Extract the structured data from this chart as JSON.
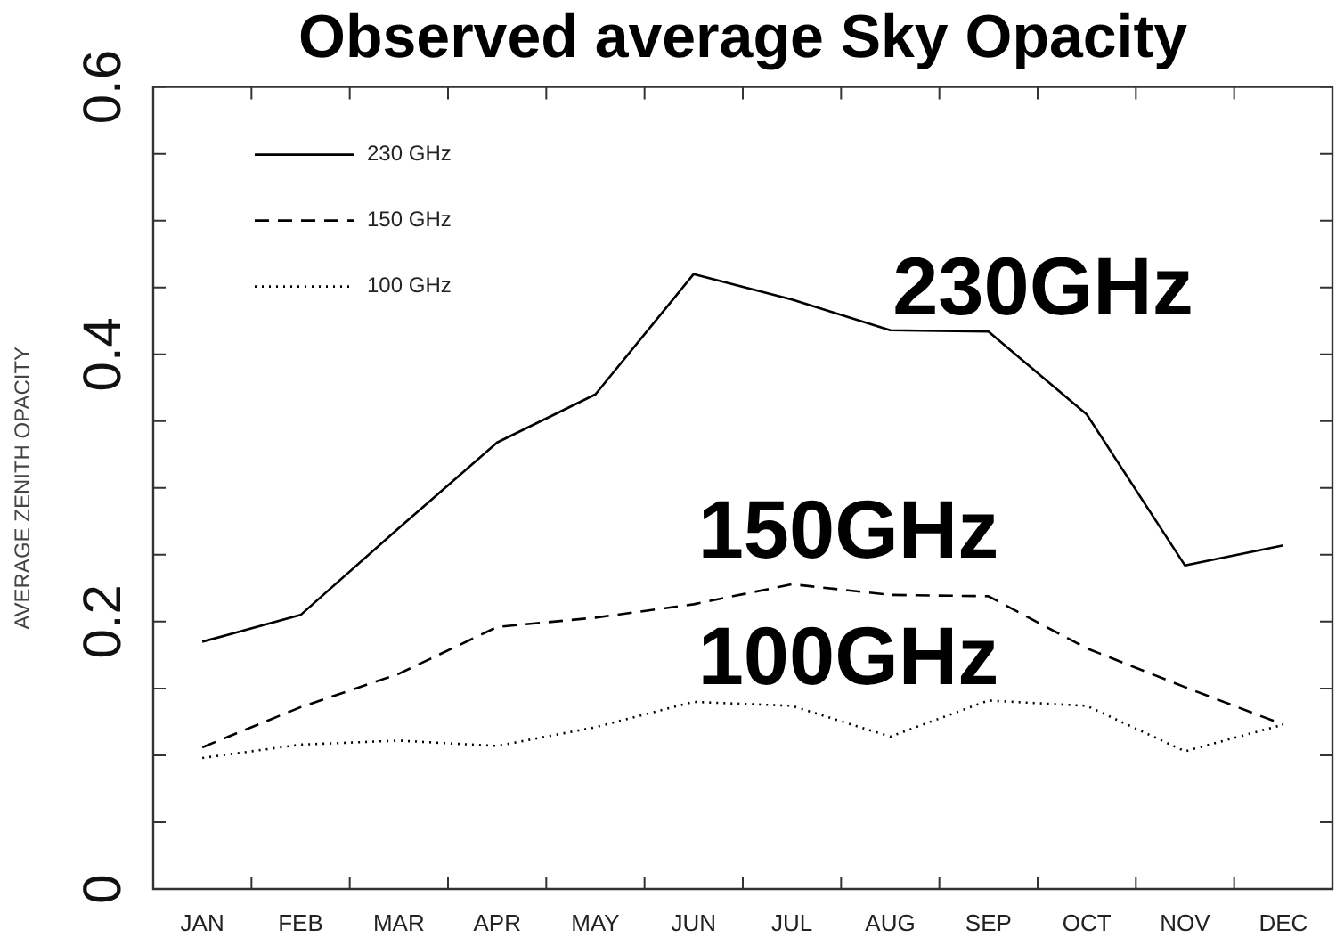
{
  "chart_data": {
    "type": "line",
    "title": "Observed average Sky Opacity",
    "ylabel": "AVERAGE ZENITH OPACITY",
    "categories": [
      "JAN",
      "FEB",
      "MAR",
      "APR",
      "MAY",
      "JUN",
      "JUL",
      "AUG",
      "SEP",
      "OCT",
      "NOV",
      "DEC"
    ],
    "series": [
      {
        "name": "230 GHz",
        "color": "#000000",
        "line_style": "solid",
        "values": [
          0.185,
          0.205,
          0.27,
          0.334,
          0.37,
          0.46,
          0.441,
          0.418,
          0.417,
          0.355,
          0.242,
          0.257
        ]
      },
      {
        "name": "150 GHz",
        "color": "#000000",
        "line_style": "dashed",
        "values": [
          0.106,
          0.136,
          0.161,
          0.196,
          0.203,
          0.213,
          0.228,
          0.22,
          0.219,
          0.18,
          0.151,
          0.123
        ]
      },
      {
        "name": "100 GHz",
        "color": "#000000",
        "line_style": "dotted",
        "values": [
          0.098,
          0.108,
          0.111,
          0.107,
          0.121,
          0.14,
          0.137,
          0.114,
          0.141,
          0.137,
          0.103,
          0.123
        ]
      }
    ],
    "ylim": [
      0,
      0.6
    ],
    "yticks": [
      0,
      {
        "value": 0.05,
        "label": null
      },
      {
        "value": 0.1,
        "label": null
      },
      {
        "value": 0.15,
        "label": null
      },
      0.2,
      {
        "value": 0.25,
        "label": null
      },
      {
        "value": 0.3,
        "label": null
      },
      {
        "value": 0.35,
        "label": null
      },
      0.4,
      {
        "value": 0.45,
        "label": null
      },
      {
        "value": 0.5,
        "label": null
      },
      {
        "value": 0.55,
        "label": null
      },
      0.6
    ],
    "grid": false,
    "legend": "top left",
    "marker": "none",
    "annotations": [
      "230GHz",
      "150GHz",
      "100GHz"
    ]
  }
}
